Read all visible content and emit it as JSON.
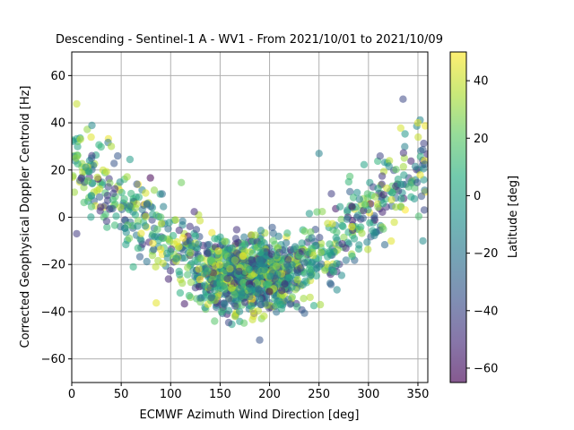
{
  "chart_data": {
    "type": "scatter",
    "title": "Descending - Sentinel-1 A - WV1 - From 2021/10/01 to 2021/10/09",
    "xlabel": "ECMWF Azimuth Wind Direction [deg]",
    "ylabel": "Corrected Geophysical Doppler Centroid [Hz]",
    "colorbar_label": "Latitude [deg]",
    "xlim": [
      0,
      360
    ],
    "ylim": [
      -70,
      70
    ],
    "clim": [
      -65,
      50
    ],
    "xticks": [
      0,
      50,
      100,
      150,
      200,
      250,
      300,
      350
    ],
    "yticks": [
      -60,
      -40,
      -20,
      0,
      20,
      40,
      60
    ],
    "cticks": [
      -60,
      -40,
      -20,
      0,
      20,
      40
    ],
    "colormap": "viridis",
    "marker_alpha": 0.55,
    "grid": true,
    "trend": {
      "description": "V-shaped relationship: minimum near 180 deg",
      "min_x": 180,
      "min_y": -25,
      "edge_y_at_0": 25,
      "edge_y_at_360": 25,
      "sample_points": [
        {
          "x": 5,
          "y": 48,
          "lat": 40
        },
        {
          "x": 5,
          "y": -7,
          "lat": -45
        },
        {
          "x": 20,
          "y": 25,
          "lat": -30
        },
        {
          "x": 40,
          "y": 30,
          "lat": 35
        },
        {
          "x": 60,
          "y": 10,
          "lat": 10
        },
        {
          "x": 90,
          "y": 0,
          "lat": 20
        },
        {
          "x": 120,
          "y": -15,
          "lat": 30
        },
        {
          "x": 150,
          "y": -28,
          "lat": 10
        },
        {
          "x": 165,
          "y": -42,
          "lat": 40
        },
        {
          "x": 180,
          "y": -30,
          "lat": -10
        },
        {
          "x": 190,
          "y": -52,
          "lat": -35
        },
        {
          "x": 200,
          "y": -25,
          "lat": 0
        },
        {
          "x": 220,
          "y": -22,
          "lat": -20
        },
        {
          "x": 250,
          "y": 27,
          "lat": -15
        },
        {
          "x": 280,
          "y": 15,
          "lat": 10
        },
        {
          "x": 315,
          "y": -5,
          "lat": 20
        },
        {
          "x": 335,
          "y": 50,
          "lat": -40
        },
        {
          "x": 350,
          "y": 40,
          "lat": 45
        },
        {
          "x": 355,
          "y": -10,
          "lat": -10
        }
      ],
      "n_points_approx": 1500
    }
  }
}
